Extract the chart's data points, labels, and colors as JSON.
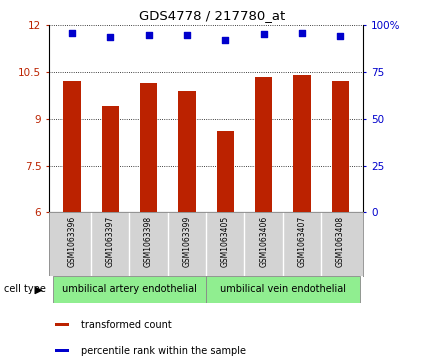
{
  "title": "GDS4778 / 217780_at",
  "samples": [
    "GSM1063396",
    "GSM1063397",
    "GSM1063398",
    "GSM1063399",
    "GSM1063405",
    "GSM1063406",
    "GSM1063407",
    "GSM1063408"
  ],
  "bar_values": [
    10.2,
    9.4,
    10.15,
    9.9,
    8.6,
    10.35,
    10.42,
    10.2
  ],
  "scatter_values": [
    11.75,
    11.62,
    11.68,
    11.68,
    11.52,
    11.72,
    11.76,
    11.67
  ],
  "bar_color": "#bb2200",
  "scatter_color": "#0000cc",
  "ylim_left": [
    6,
    12
  ],
  "ylim_right": [
    0,
    100
  ],
  "yticks_left": [
    6,
    7.5,
    9,
    10.5,
    12
  ],
  "ytick_labels_left": [
    "6",
    "7.5",
    "9",
    "10.5",
    "12"
  ],
  "ytick_labels_right": [
    "0",
    "25",
    "50",
    "75",
    "100%"
  ],
  "cell_group1_label": "umbilical artery endothelial",
  "cell_group2_label": "umbilical vein endothelial",
  "cell_group_color": "#90ee90",
  "cell_type_label": "cell type",
  "legend_bar_label": "transformed count",
  "legend_scatter_label": "percentile rank within the sample",
  "bar_width": 0.45,
  "sample_label_fontsize": 5.5,
  "axis_fontsize": 7.5,
  "title_fontsize": 9.5,
  "legend_fontsize": 7.0,
  "celltype_fontsize": 7.0
}
